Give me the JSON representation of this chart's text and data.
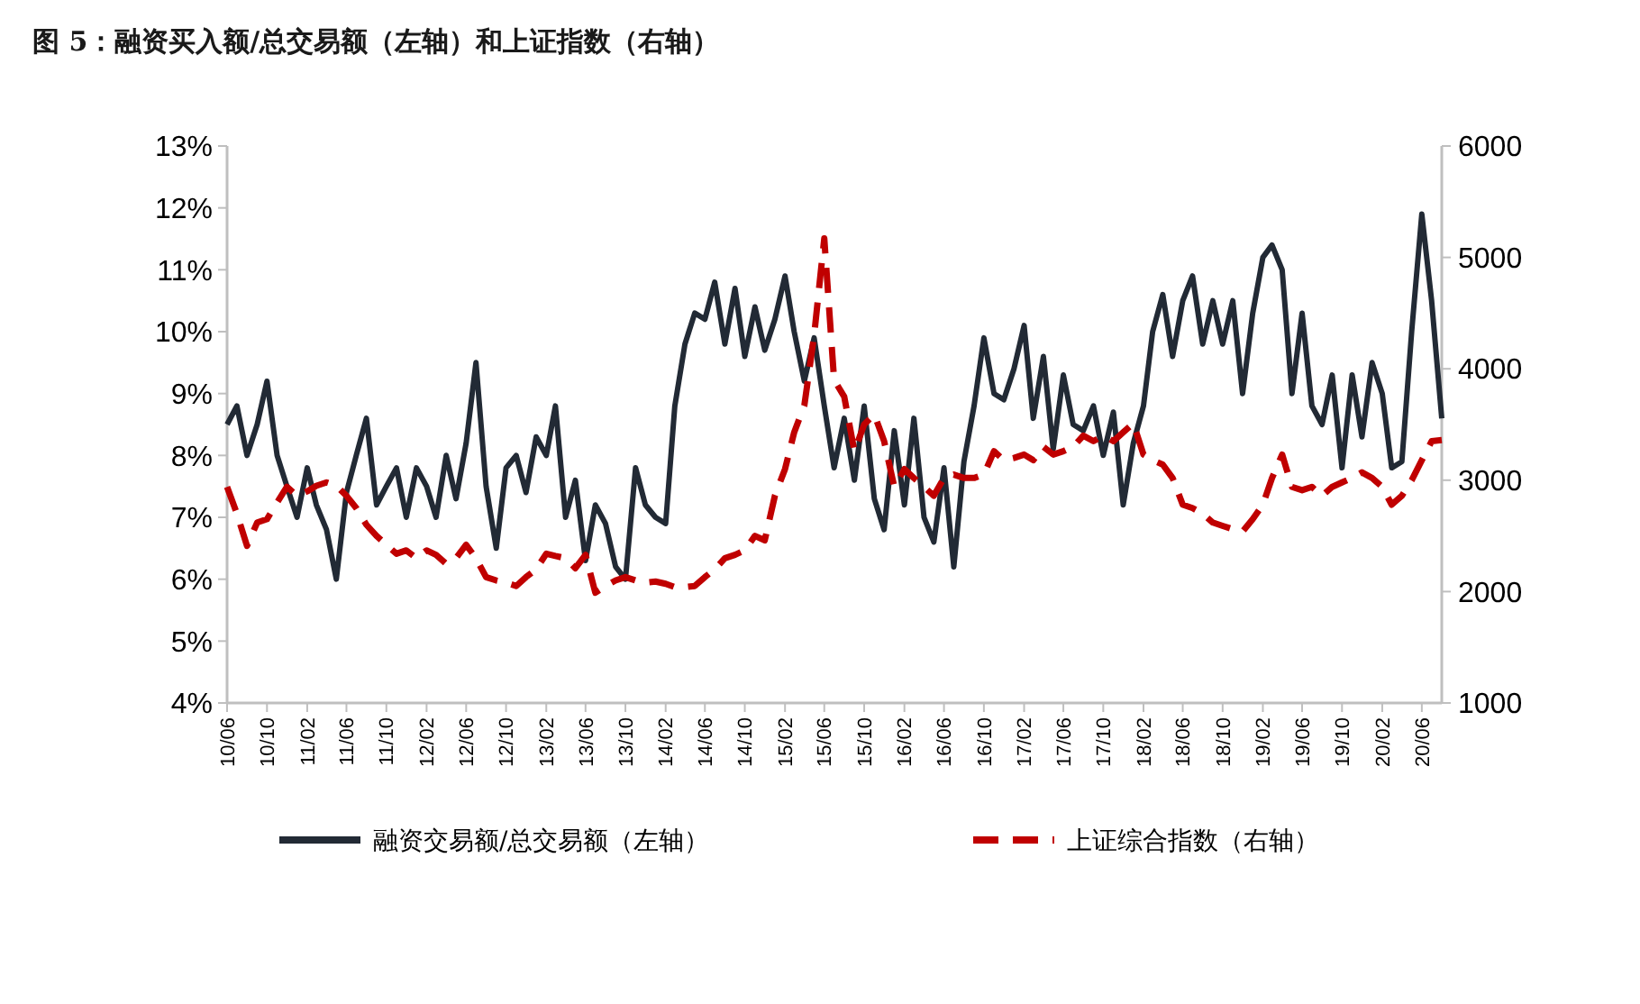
{
  "chart_data": {
    "type": "line",
    "title": "图 5：融资买入额/总交易额（左轴）和上证指数（右轴）",
    "x": [
      "2010-06",
      "2010-07",
      "2010-08",
      "2010-09",
      "2010-10",
      "2010-11",
      "2010-12",
      "2011-01",
      "2011-02",
      "2011-03",
      "2011-04",
      "2011-05",
      "2011-06",
      "2011-07",
      "2011-08",
      "2011-09",
      "2011-10",
      "2011-11",
      "2011-12",
      "2012-01",
      "2012-02",
      "2012-03",
      "2012-04",
      "2012-05",
      "2012-06",
      "2012-07",
      "2012-08",
      "2012-09",
      "2012-10",
      "2012-11",
      "2012-12",
      "2013-01",
      "2013-02",
      "2013-03",
      "2013-04",
      "2013-05",
      "2013-06",
      "2013-07",
      "2013-08",
      "2013-09",
      "2013-10",
      "2013-11",
      "2013-12",
      "2014-01",
      "2014-02",
      "2014-03",
      "2014-04",
      "2014-05",
      "2014-06",
      "2014-07",
      "2014-08",
      "2014-09",
      "2014-10",
      "2014-11",
      "2014-12",
      "2015-01",
      "2015-02",
      "2015-03",
      "2015-04",
      "2015-05",
      "2015-06",
      "2015-07",
      "2015-08",
      "2015-09",
      "2015-10",
      "2015-11",
      "2015-12",
      "2016-01",
      "2016-02",
      "2016-03",
      "2016-04",
      "2016-05",
      "2016-06",
      "2016-07",
      "2016-08",
      "2016-09",
      "2016-10",
      "2016-11",
      "2016-12",
      "2017-01",
      "2017-02",
      "2017-03",
      "2017-04",
      "2017-05",
      "2017-06",
      "2017-07",
      "2017-08",
      "2017-09",
      "2017-10",
      "2017-11",
      "2017-12",
      "2018-01",
      "2018-02",
      "2018-03",
      "2018-04",
      "2018-05",
      "2018-06",
      "2018-07",
      "2018-08",
      "2018-09",
      "2018-10",
      "2018-11",
      "2018-12",
      "2019-01",
      "2019-02",
      "2019-03",
      "2019-04",
      "2019-05",
      "2019-06",
      "2019-07",
      "2019-08",
      "2019-09",
      "2019-10",
      "2019-11",
      "2019-12",
      "2020-01",
      "2020-02",
      "2020-03",
      "2020-04",
      "2020-05",
      "2020-06",
      "2020-07",
      "2020-08"
    ],
    "series": [
      {
        "name": "融资交易额/总交易额（左轴）",
        "color": "#222a35",
        "line_style": "solid",
        "values": [
          8.5,
          8.8,
          8.0,
          8.5,
          9.2,
          8.0,
          7.5,
          7.0,
          7.8,
          7.2,
          6.8,
          6.0,
          7.4,
          8.0,
          8.6,
          7.2,
          7.5,
          7.8,
          7.0,
          7.8,
          7.5,
          7.0,
          8.0,
          7.3,
          8.2,
          9.5,
          7.5,
          6.5,
          7.8,
          8.0,
          7.4,
          8.3,
          8.0,
          8.8,
          7.0,
          7.6,
          6.3,
          7.2,
          6.9,
          6.2,
          6.0,
          7.8,
          7.2,
          7.0,
          6.9,
          8.8,
          9.8,
          10.3,
          10.2,
          10.8,
          9.8,
          10.7,
          9.6,
          10.4,
          9.7,
          10.2,
          10.9,
          10.0,
          9.2,
          9.9,
          8.8,
          7.8,
          8.6,
          7.6,
          8.8,
          7.3,
          6.8,
          8.4,
          7.2,
          8.6,
          7.0,
          6.6,
          7.8,
          6.2,
          7.9,
          8.8,
          9.9,
          9.0,
          8.9,
          9.4,
          10.1,
          8.6,
          9.6,
          8.1,
          9.3,
          8.5,
          8.4,
          8.8,
          8.0,
          8.7,
          7.2,
          8.2,
          8.8,
          10.0,
          10.6,
          9.6,
          10.5,
          10.9,
          9.8,
          10.5,
          9.8,
          10.5,
          9.0,
          10.3,
          11.2,
          11.4,
          11.0,
          9.0,
          10.3,
          8.8,
          8.5,
          9.3,
          7.8,
          9.3,
          8.3,
          9.5,
          9.0,
          7.8,
          7.9,
          10.0,
          11.9,
          10.5,
          8.6
        ]
      },
      {
        "name": "上证综合指数（右轴）",
        "color": "#c00000",
        "axis": "y2",
        "line_style": "dashed",
        "values": [
          2940,
          2700,
          2410,
          2620,
          2650,
          2800,
          2940,
          2860,
          2900,
          2950,
          2980,
          2950,
          2860,
          2750,
          2600,
          2500,
          2420,
          2340,
          2370,
          2300,
          2370,
          2330,
          2250,
          2300,
          2420,
          2300,
          2130,
          2100,
          2080,
          2050,
          2130,
          2200,
          2340,
          2320,
          2300,
          2210,
          2330,
          1990,
          2050,
          2100,
          2130,
          2100,
          2080,
          2090,
          2070,
          2040,
          2040,
          2050,
          2130,
          2200,
          2300,
          2330,
          2370,
          2500,
          2460,
          2860,
          3100,
          3430,
          3670,
          4300,
          5170,
          3900,
          3750,
          3260,
          3500,
          3590,
          3350,
          2940,
          3100,
          3020,
          2940,
          2860,
          3020,
          3050,
          3020,
          3020,
          3050,
          3260,
          3180,
          3200,
          3230,
          3180,
          3300,
          3230,
          3260,
          3300,
          3400,
          3350,
          3400,
          3350,
          3430,
          3510,
          3230,
          3180,
          3140,
          3020,
          2780,
          2750,
          2700,
          2620,
          2590,
          2560,
          2540,
          2650,
          2780,
          3020,
          3230,
          2940,
          2910,
          2940,
          2860,
          2940,
          2980,
          3020,
          3070,
          3020,
          2940,
          2780,
          2860,
          3000,
          3180,
          3350,
          3360
        ]
      }
    ],
    "xlim": [
      "2010-06",
      "2020-08"
    ],
    "xticks": [
      {
        "value": "2010-06",
        "label": "10/06"
      },
      {
        "value": "2010-10",
        "label": "10/10"
      },
      {
        "value": "2011-02",
        "label": "11/02"
      },
      {
        "value": "2011-06",
        "label": "11/06"
      },
      {
        "value": "2011-10",
        "label": "11/10"
      },
      {
        "value": "2012-02",
        "label": "12/02"
      },
      {
        "value": "2012-06",
        "label": "12/06"
      },
      {
        "value": "2012-10",
        "label": "12/10"
      },
      {
        "value": "2013-02",
        "label": "13/02"
      },
      {
        "value": "2013-06",
        "label": "13/06"
      },
      {
        "value": "2013-10",
        "label": "13/10"
      },
      {
        "value": "2014-02",
        "label": "14/02"
      },
      {
        "value": "2014-06",
        "label": "14/06"
      },
      {
        "value": "2014-10",
        "label": "14/10"
      },
      {
        "value": "2015-02",
        "label": "15/02"
      },
      {
        "value": "2015-06",
        "label": "15/06"
      },
      {
        "value": "2015-10",
        "label": "15/10"
      },
      {
        "value": "2016-02",
        "label": "16/02"
      },
      {
        "value": "2016-06",
        "label": "16/06"
      },
      {
        "value": "2016-10",
        "label": "16/10"
      },
      {
        "value": "2017-02",
        "label": "17/02"
      },
      {
        "value": "2017-06",
        "label": "17/06"
      },
      {
        "value": "2017-10",
        "label": "17/10"
      },
      {
        "value": "2018-02",
        "label": "18/02"
      },
      {
        "value": "2018-06",
        "label": "18/06"
      },
      {
        "value": "2018-10",
        "label": "18/10"
      },
      {
        "value": "2019-02",
        "label": "19/02"
      },
      {
        "value": "2019-06",
        "label": "19/06"
      },
      {
        "value": "2019-10",
        "label": "19/10"
      },
      {
        "value": "2020-02",
        "label": "20/02"
      },
      {
        "value": "2020-06",
        "label": "20/06"
      }
    ],
    "ylim": [
      4,
      13
    ],
    "yticks": [
      {
        "value": 4,
        "label": "4%"
      },
      {
        "value": 5,
        "label": "5%"
      },
      {
        "value": 6,
        "label": "6%"
      },
      {
        "value": 7,
        "label": "7%"
      },
      {
        "value": 8,
        "label": "8%"
      },
      {
        "value": 9,
        "label": "9%"
      },
      {
        "value": 10,
        "label": "10%"
      },
      {
        "value": 11,
        "label": "11%"
      },
      {
        "value": 12,
        "label": "12%"
      },
      {
        "value": 13,
        "label": "13%"
      }
    ],
    "y2lim": [
      1000,
      6000
    ],
    "y2ticks": [
      1000,
      2000,
      3000,
      4000,
      5000,
      6000
    ],
    "grid": false,
    "legend": "bottom",
    "marker": "none"
  }
}
